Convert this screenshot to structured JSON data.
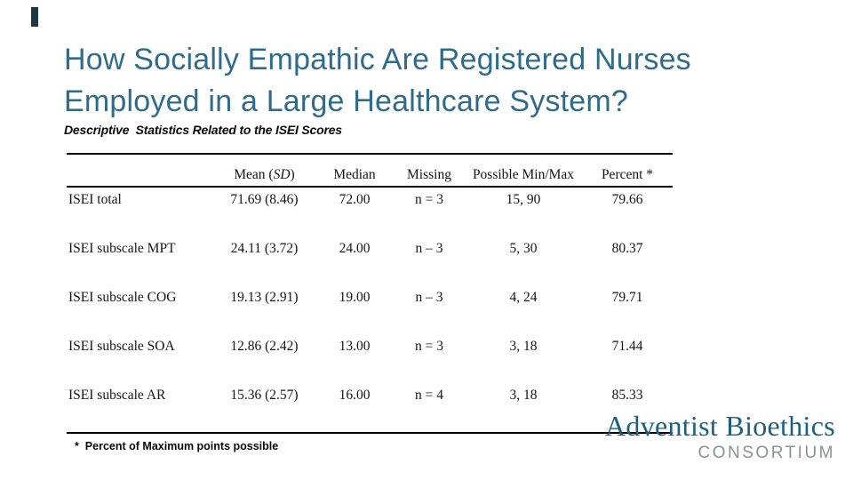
{
  "slide": {
    "title_line1": "How Socially Empathic Are Registered Nurses",
    "title_line2": "Employed in a Large Healthcare System?",
    "subtitle": "Descriptive  Statistics Related to the ISEI Scores",
    "title_color": "#2F6C8C",
    "accent_bar_color": "#1E3747"
  },
  "table": {
    "headers": {
      "label": "",
      "mean_prefix": "Mean (",
      "mean_italic": "SD",
      "mean_suffix": ")",
      "median": "Median",
      "missing": "Missing",
      "minmax": "Possible Min/Max",
      "percent": "Percent *"
    },
    "rows": [
      {
        "label": "ISEI total",
        "mean": "71.69 (8.46)",
        "median": "72.00",
        "missing": "n = 3",
        "minmax": "15, 90",
        "percent": "79.66"
      },
      {
        "label": "ISEI subscale MPT",
        "mean": "24.11 (3.72)",
        "median": "24.00",
        "missing": "n – 3",
        "minmax": "5, 30",
        "percent": "80.37"
      },
      {
        "label": "ISEI subscale COG",
        "mean": "19.13 (2.91)",
        "median": "19.00",
        "missing": "n – 3",
        "minmax": "4, 24",
        "percent": "79.71"
      },
      {
        "label": "ISEI subscale SOA",
        "mean": "12.86 (2.42)",
        "median": "13.00",
        "missing": "n = 3",
        "minmax": "3, 18",
        "percent": "71.44"
      },
      {
        "label": "ISEI subscale AR",
        "mean": "15.36 (2.57)",
        "median": "16.00",
        "missing": "n = 4",
        "minmax": "3, 18",
        "percent": "85.33"
      }
    ]
  },
  "footnote": "*  Percent of Maximum points possible",
  "logo": {
    "name": "Adventist Bioethics",
    "subname": "CONSORTIUM",
    "name_color": "#1A617F",
    "subname_color": "#8D9093"
  }
}
